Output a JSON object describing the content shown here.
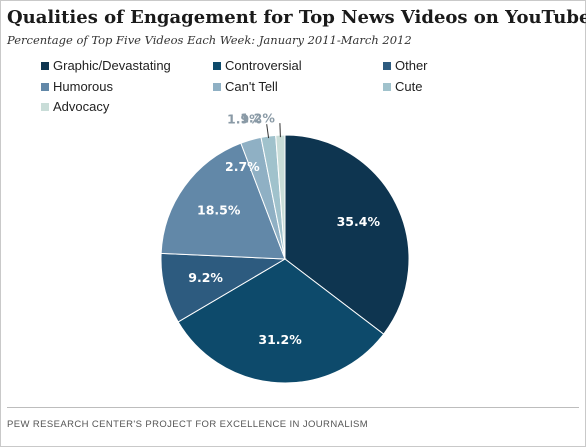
{
  "chart_data": {
    "type": "pie",
    "title": "Qualities of Engagement for Top News Videos on YouTube",
    "subtitle": "Percentage of Top Five Videos Each Week: January 2011-March 2012",
    "source": "PEW RESEARCH CENTER'S PROJECT FOR EXCELLENCE IN JOURNALISM",
    "legend_placement": "top",
    "slices": [
      {
        "name": "Graphic/Devastating",
        "value": 35.4,
        "label": "35.4%",
        "color": "#0e3550"
      },
      {
        "name": "Controversial",
        "value": 31.2,
        "label": "31.2%",
        "color": "#0d4a6b"
      },
      {
        "name": "Other",
        "value": 9.2,
        "label": "9.2%",
        "color": "#2d5b7f"
      },
      {
        "name": "Humorous",
        "value": 18.5,
        "label": "18.5%",
        "color": "#6288a8"
      },
      {
        "name": "Can't Tell",
        "value": 2.7,
        "label": "2.7%",
        "color": "#8fb0c4"
      },
      {
        "name": "Cute",
        "value": 1.9,
        "label": "1.9%",
        "color": "#a0c2cc"
      },
      {
        "name": "Advocacy",
        "value": 1.2,
        "label": "1.2%",
        "color": "#c9ddd8"
      }
    ]
  }
}
